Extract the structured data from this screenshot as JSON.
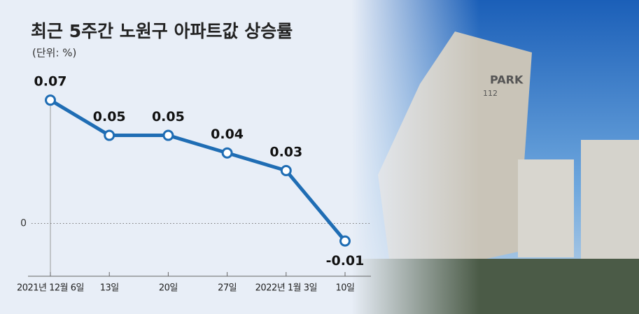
{
  "chart_data": {
    "type": "line",
    "title": "최근 5주간 노원구 아파트값 상승률",
    "subtitle": "(단위: %)",
    "categories": [
      "2021년 12월 6일",
      "13일",
      "20일",
      "27일",
      "2022년 1월 3일",
      "10일"
    ],
    "series": [
      {
        "color": "#1f6db4",
        "values": [
          0.07,
          0.05,
          0.05,
          0.04,
          0.03,
          -0.01
        ]
      }
    ],
    "ylim": [
      -0.03,
      0.08
    ],
    "yticks": [
      0
    ],
    "grid": true
  }
}
